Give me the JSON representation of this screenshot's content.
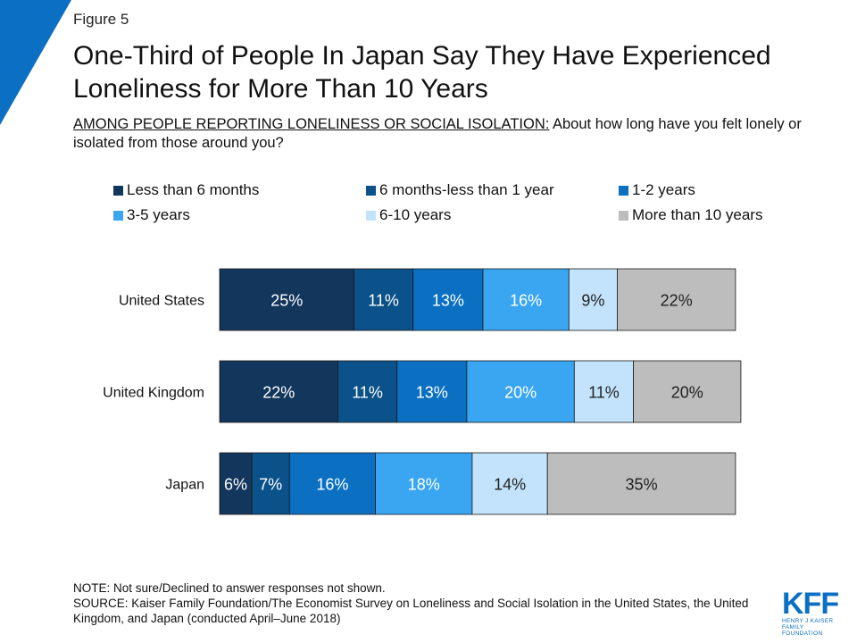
{
  "figure_label": "Figure 5",
  "title_line1": "One-Third of People In Japan Say They Have Experienced",
  "title_line2": "Loneliness for More Than 10 Years",
  "subtitle_lead": "AMONG PEOPLE REPORTING LONELINESS OR SOCIAL ISOLATION:",
  "subtitle_rest": " About how long have you felt lonely or isolated from those around you?",
  "note": "NOTE: Not sure/Declined to answer responses not shown.",
  "source": "SOURCE: Kaiser Family Foundation/The Economist Survey on Loneliness and Social Isolation in the United States, the United Kingdom, and Japan (conducted April–June 2018)",
  "logo": {
    "mark": "KFF",
    "line1": "HENRY J KAISER",
    "line2": "FAMILY FOUNDATION",
    "color": "#0b6fc4"
  },
  "corner_color": "#0b6fc4",
  "chart_data": {
    "type": "bar",
    "orientation": "horizontal",
    "stacked": true,
    "categories": [
      "United States",
      "United Kingdom",
      "Japan"
    ],
    "series": [
      {
        "name": "Less than 6 months",
        "color": "#13365c",
        "label_color": "#ffffff",
        "values": [
          25,
          22,
          6
        ]
      },
      {
        "name": "6 months-less than 1 year",
        "color": "#0b518a",
        "label_color": "#ffffff",
        "values": [
          11,
          11,
          7
        ]
      },
      {
        "name": "1-2 years",
        "color": "#0b70c2",
        "label_color": "#ffffff",
        "values": [
          13,
          13,
          16
        ]
      },
      {
        "name": "3-5 years",
        "color": "#3aa6f2",
        "label_color": "#ffffff",
        "values": [
          16,
          20,
          18
        ]
      },
      {
        "name": "6-10 years",
        "color": "#c2e3fb",
        "label_color": "#222222",
        "values": [
          9,
          11,
          14
        ]
      },
      {
        "name": "More than 10 years",
        "color": "#bdbdbd",
        "label_color": "#222222",
        "values": [
          22,
          20,
          35
        ]
      }
    ],
    "value_suffix": "%",
    "legend_position": "top",
    "grid": false
  }
}
